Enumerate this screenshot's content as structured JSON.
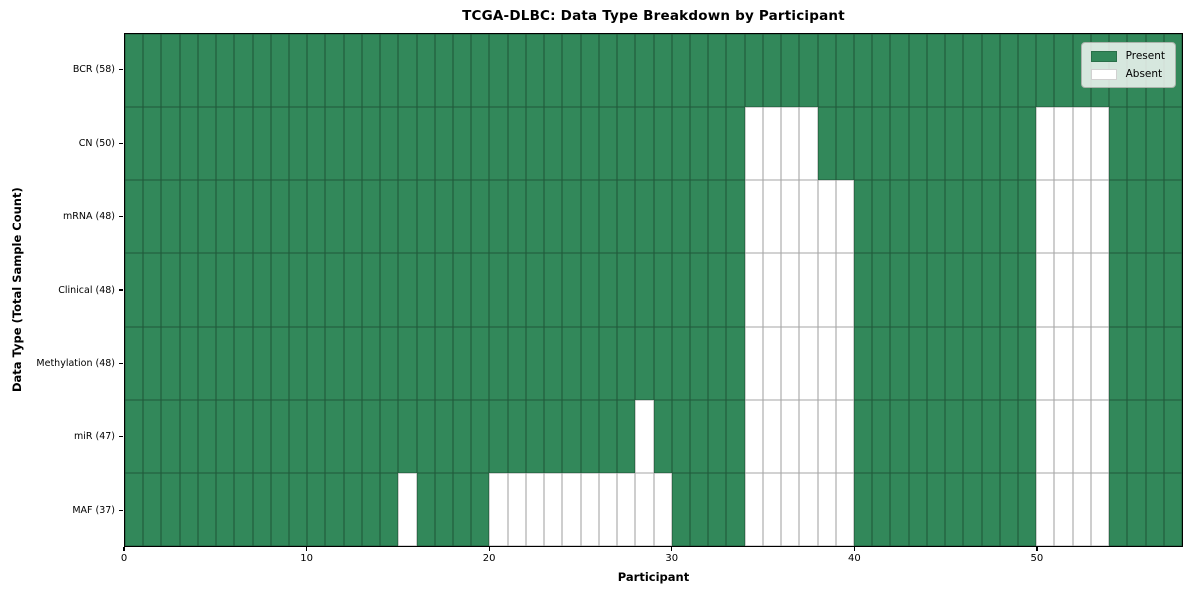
{
  "chart_data": {
    "type": "heatmap",
    "title": "TCGA-DLBC: Data Type Breakdown by Participant",
    "xlabel": "Participant",
    "ylabel": "Data Type (Total Sample Count)",
    "x_range": [
      0,
      58
    ],
    "x_ticks": [
      0,
      10,
      20,
      30,
      40,
      50
    ],
    "n_participants": 58,
    "grid": "cell-borders",
    "legend_position": "upper-right",
    "legend": [
      {
        "label": "Present",
        "color": "#32885a"
      },
      {
        "label": "Absent",
        "color": "#ffffff"
      }
    ],
    "colors": {
      "present": "#32885a",
      "absent": "#ffffff",
      "cell_edge": "rgba(0,0,0,0.35)",
      "spine": "#000000"
    },
    "rows": [
      {
        "label": "BCR (58)",
        "data_type": "BCR",
        "present_count": 58,
        "absent_participants": []
      },
      {
        "label": "CN (50)",
        "data_type": "CN",
        "present_count": 50,
        "absent_participants": [
          34,
          35,
          36,
          37,
          50,
          51,
          52,
          53
        ]
      },
      {
        "label": "mRNA (48)",
        "data_type": "mRNA",
        "present_count": 48,
        "absent_participants": [
          34,
          35,
          36,
          37,
          38,
          39,
          50,
          51,
          52,
          53
        ]
      },
      {
        "label": "Clinical (48)",
        "data_type": "Clinical",
        "present_count": 48,
        "absent_participants": [
          34,
          35,
          36,
          37,
          38,
          39,
          50,
          51,
          52,
          53
        ]
      },
      {
        "label": "Methylation (48)",
        "data_type": "Methylation",
        "present_count": 48,
        "absent_participants": [
          34,
          35,
          36,
          37,
          38,
          39,
          50,
          51,
          52,
          53
        ]
      },
      {
        "label": "miR (47)",
        "data_type": "miR",
        "present_count": 47,
        "absent_participants": [
          28,
          34,
          35,
          36,
          37,
          38,
          39,
          50,
          51,
          52,
          53
        ]
      },
      {
        "label": "MAF (37)",
        "data_type": "MAF",
        "present_count": 37,
        "absent_participants": [
          15,
          20,
          21,
          22,
          23,
          24,
          25,
          26,
          27,
          28,
          29,
          34,
          35,
          36,
          37,
          38,
          39,
          50,
          51,
          52,
          53
        ]
      }
    ]
  }
}
